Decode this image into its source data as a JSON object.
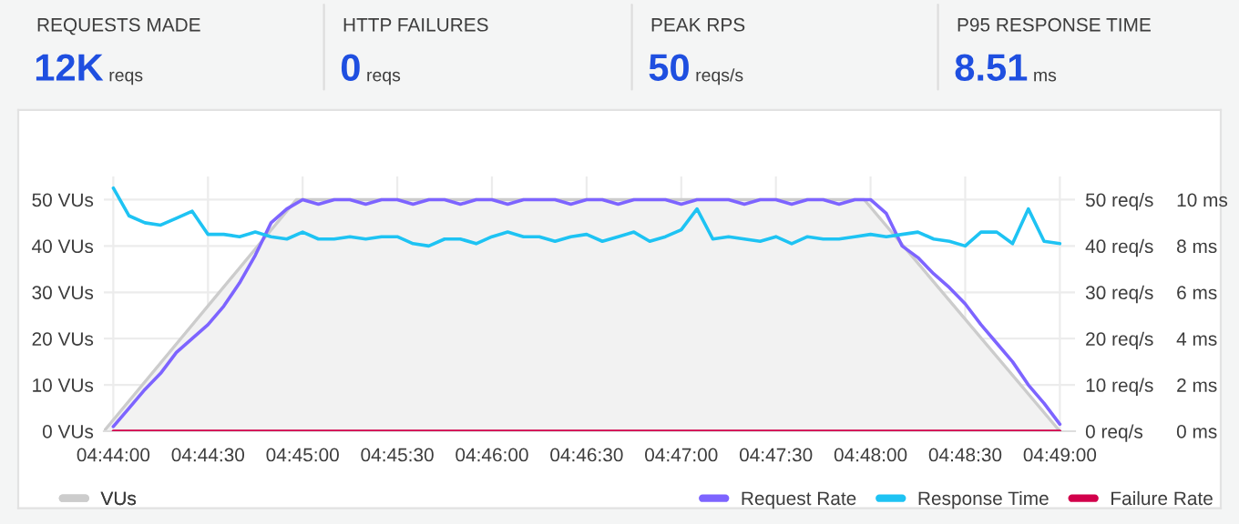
{
  "chart_data": [
    {
      "type": "other",
      "annotations": [
        "REQUESTS MADE",
        "12K",
        "reqs",
        "HTTP FAILURES",
        "0",
        "reqs",
        "PEAK RPS",
        "50",
        "reqs/s",
        "P95 RESPONSE TIME",
        "8.51",
        "ms"
      ]
    },
    {
      "type": "line",
      "x": [
        4.733333,
        4.734722,
        4.736111,
        4.7375,
        4.738889,
        4.740278,
        4.741667,
        4.743056,
        4.744444,
        4.745833,
        4.747222,
        4.748611,
        4.75,
        4.751389,
        4.752778,
        4.754167,
        4.755556,
        4.756944,
        4.758333,
        4.759722,
        4.761111,
        4.7625,
        4.763889,
        4.765278,
        4.766667,
        4.768056,
        4.769444,
        4.770833,
        4.772222,
        4.773611,
        4.775,
        4.776389,
        4.777778,
        4.779167,
        4.780556,
        4.781944,
        4.783333,
        4.784722,
        4.786111,
        4.7875,
        4.788889,
        4.790278,
        4.791667,
        4.793056,
        4.794444,
        4.795833,
        4.797222,
        4.798611,
        4.8,
        4.801389,
        4.802778,
        4.804167,
        4.805556,
        4.806944,
        4.808333,
        4.809722,
        4.811111,
        4.8125,
        4.813889,
        4.815278,
        4.816667
      ],
      "series": [
        {
          "name": "VUs",
          "type": "area",
          "axis": "y",
          "color": "#cccccc",
          "x": [
            4.7325,
            4.749444,
            4.799444,
            4.816667
          ],
          "values": [
            0,
            50,
            50,
            0
          ]
        },
        {
          "name": "Request Rate",
          "axis": "y2",
          "color": "#7d64ff",
          "values": [
            1,
            5,
            9,
            12.5,
            17,
            20,
            23,
            27,
            32,
            38,
            45,
            48,
            50,
            49,
            50,
            50,
            49,
            50,
            50,
            49,
            50,
            50,
            49,
            50,
            50,
            49,
            50,
            50,
            50,
            49,
            50,
            50,
            49,
            50,
            50,
            50,
            49,
            50,
            50,
            50,
            49,
            50,
            50,
            49,
            50,
            50,
            49,
            50,
            50,
            47,
            40,
            37.5,
            34,
            31,
            27.5,
            23,
            19,
            15,
            10,
            6,
            1.5
          ]
        },
        {
          "name": "Response Time",
          "axis": "y3",
          "color": "#1ec3f3",
          "values": [
            10.5,
            9.3,
            9.0,
            8.9,
            9.2,
            9.5,
            8.5,
            8.5,
            8.4,
            8.6,
            8.4,
            8.3,
            8.6,
            8.3,
            8.3,
            8.4,
            8.3,
            8.4,
            8.4,
            8.1,
            8.0,
            8.3,
            8.3,
            8.1,
            8.4,
            8.6,
            8.4,
            8.4,
            8.2,
            8.4,
            8.5,
            8.2,
            8.4,
            8.6,
            8.2,
            8.4,
            8.7,
            9.6,
            8.3,
            8.4,
            8.3,
            8.2,
            8.4,
            8.1,
            8.4,
            8.3,
            8.3,
            8.4,
            8.5,
            8.4,
            8.5,
            8.6,
            8.3,
            8.2,
            8.0,
            8.6,
            8.6,
            8.1,
            9.6,
            8.2,
            8.1
          ]
        },
        {
          "name": "Failure Rate",
          "axis": "y2",
          "color": "#d2004b",
          "x": [
            4.733333,
            4.816667
          ],
          "values": [
            0,
            0
          ]
        }
      ],
      "xlim": [
        4.7325,
        4.818
      ],
      "xticks": [
        {
          "value": 4.733333,
          "label": "04:44:00"
        },
        {
          "value": 4.741667,
          "label": "04:44:30"
        },
        {
          "value": 4.75,
          "label": "04:45:00"
        },
        {
          "value": 4.758333,
          "label": "04:45:30"
        },
        {
          "value": 4.766667,
          "label": "04:46:00"
        },
        {
          "value": 4.775,
          "label": "04:46:30"
        },
        {
          "value": 4.783333,
          "label": "04:47:00"
        },
        {
          "value": 4.791667,
          "label": "04:47:30"
        },
        {
          "value": 4.8,
          "label": "04:48:00"
        },
        {
          "value": 4.808333,
          "label": "04:48:30"
        },
        {
          "value": 4.816667,
          "label": "04:49:00"
        }
      ],
      "ylim": [
        0,
        55
      ],
      "yticks": [
        {
          "value": 0,
          "label": "0 VUs"
        },
        {
          "value": 10,
          "label": "10 VUs"
        },
        {
          "value": 20,
          "label": "20 VUs"
        },
        {
          "value": 30,
          "label": "30 VUs"
        },
        {
          "value": 40,
          "label": "40 VUs"
        },
        {
          "value": 50,
          "label": "50 VUs"
        }
      ],
      "y2lim": [
        0,
        55
      ],
      "y2ticks": [
        {
          "value": 0,
          "label": "0 req/s"
        },
        {
          "value": 10,
          "label": "10 req/s"
        },
        {
          "value": 20,
          "label": "20 req/s"
        },
        {
          "value": 30,
          "label": "30 req/s"
        },
        {
          "value": 40,
          "label": "40 req/s"
        },
        {
          "value": 50,
          "label": "50 req/s"
        }
      ],
      "y3lim": [
        0,
        11
      ],
      "y3ticks": [
        {
          "value": 0,
          "label": "0 ms"
        },
        {
          "value": 2,
          "label": "2 ms"
        },
        {
          "value": 4,
          "label": "4 ms"
        },
        {
          "value": 6,
          "label": "6 ms"
        },
        {
          "value": 8,
          "label": "8 ms"
        },
        {
          "value": 10,
          "label": "10 ms"
        }
      ],
      "grid": true,
      "legend": "bottom"
    }
  ]
}
